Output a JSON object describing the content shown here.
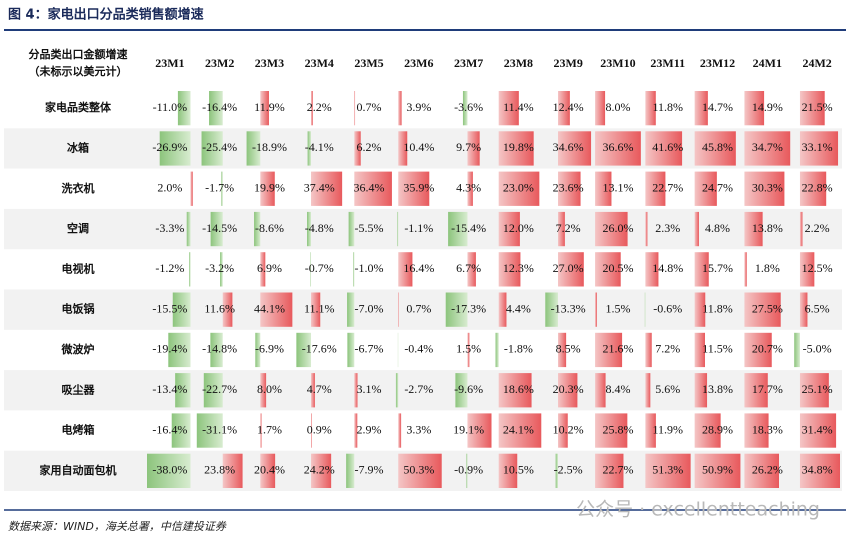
{
  "title": "图 4：家电出口分品类销售额增速",
  "table": {
    "header": {
      "label_lines": [
        "分品类出口金额增速",
        "（未标示以美元计）"
      ],
      "columns": [
        "23M1",
        "23M2",
        "23M3",
        "23M4",
        "23M5",
        "23M6",
        "23M7",
        "23M8",
        "23M9",
        "23M10",
        "23M11",
        "23M12",
        "24M1",
        "24M2"
      ]
    },
    "rows": [
      {
        "label": "家电品类整体",
        "values": [
          -11.0,
          -16.4,
          11.9,
          2.2,
          0.7,
          3.9,
          -3.6,
          11.4,
          12.4,
          8.0,
          11.8,
          14.7,
          14.9,
          21.5
        ],
        "value_labels": [
          "-11.0%",
          "-16.4%",
          "11.9%",
          "2.2%",
          "0.7%",
          "3.9%",
          "-3.6%",
          "11.4%",
          "12.4%",
          "8.0%",
          "11.8%",
          "14.7%",
          "14.9%",
          "21.5%"
        ]
      },
      {
        "label": "冰箱",
        "values": [
          -26.9,
          -25.4,
          -18.9,
          -4.1,
          6.2,
          10.4,
          9.7,
          19.8,
          34.6,
          36.6,
          41.6,
          45.8,
          34.7,
          33.1
        ],
        "value_labels": [
          "-26.9%",
          "-25.4%",
          "-18.9%",
          "-4.1%",
          "6.2%",
          "10.4%",
          "9.7%",
          "19.8%",
          "34.6%",
          "36.6%",
          "41.6%",
          "45.8%",
          "34.7%",
          "33.1%"
        ]
      },
      {
        "label": "洗衣机",
        "values": [
          2.0,
          -1.7,
          19.9,
          37.4,
          36.4,
          35.9,
          4.3,
          23.0,
          23.6,
          13.1,
          22.7,
          24.7,
          30.3,
          22.8
        ],
        "value_labels": [
          "2.0%",
          "-1.7%",
          "19.9%",
          "37.4%",
          "36.4%",
          "35.9%",
          "4.3%",
          "23.0%",
          "23.6%",
          "13.1%",
          "22.7%",
          "24.7%",
          "30.3%",
          "22.8%"
        ]
      },
      {
        "label": "空调",
        "values": [
          -3.3,
          -14.5,
          -8.6,
          -4.8,
          -5.5,
          -1.1,
          -15.4,
          12.0,
          7.2,
          26.0,
          2.3,
          4.8,
          13.8,
          2.2
        ],
        "value_labels": [
          "-3.3%",
          "-14.5%",
          "-8.6%",
          "-4.8%",
          "-5.5%",
          "-1.1%",
          "-15.4%",
          "12.0%",
          "7.2%",
          "26.0%",
          "2.3%",
          "4.8%",
          "13.8%",
          "2.2%"
        ]
      },
      {
        "label": "电视机",
        "values": [
          -1.2,
          -3.2,
          6.9,
          -0.7,
          -1.0,
          16.4,
          6.7,
          12.3,
          27.0,
          20.5,
          14.8,
          15.7,
          1.8,
          12.5
        ],
        "value_labels": [
          "-1.2%",
          "-3.2%",
          "6.9%",
          "-0.7%",
          "-1.0%",
          "16.4%",
          "6.7%",
          "12.3%",
          "27.0%",
          "20.5%",
          "14.8%",
          "15.7%",
          "1.8%",
          "12.5%"
        ]
      },
      {
        "label": "电饭锅",
        "values": [
          -15.5,
          11.6,
          44.1,
          11.1,
          -7.0,
          0.7,
          -17.3,
          4.4,
          -13.3,
          1.5,
          -0.6,
          11.8,
          27.5,
          6.5
        ],
        "value_labels": [
          "-15.5%",
          "11.6%",
          "44.1%",
          "11.1%",
          "-7.0%",
          "0.7%",
          "-17.3%",
          "4.4%",
          "-13.3%",
          "1.5%",
          "-0.6%",
          "11.8%",
          "27.5%",
          "6.5%"
        ]
      },
      {
        "label": "微波炉",
        "values": [
          -19.4,
          -14.8,
          -6.9,
          -17.6,
          -6.7,
          -0.4,
          1.5,
          -1.8,
          8.5,
          21.6,
          7.2,
          11.5,
          20.7,
          -5.0
        ],
        "value_labels": [
          "-19.4%",
          "-14.8%",
          "-6.9%",
          "-17.6%",
          "-6.7%",
          "-0.4%",
          "1.5%",
          "-1.8%",
          "8.5%",
          "21.6%",
          "7.2%",
          "11.5%",
          "20.7%",
          "-5.0%"
        ]
      },
      {
        "label": "吸尘器",
        "values": [
          -13.4,
          -22.7,
          8.0,
          4.7,
          3.1,
          -2.7,
          -9.6,
          18.6,
          20.3,
          8.4,
          5.6,
          13.8,
          17.7,
          25.1
        ],
        "value_labels": [
          "-13.4%",
          "-22.7%",
          "8.0%",
          "4.7%",
          "3.1%",
          "-2.7%",
          "-9.6%",
          "18.6%",
          "20.3%",
          "8.4%",
          "5.6%",
          "13.8%",
          "17.7%",
          "25.1%"
        ]
      },
      {
        "label": "电烤箱",
        "values": [
          -16.4,
          -31.1,
          1.7,
          0.9,
          2.9,
          3.3,
          19.1,
          24.1,
          10.2,
          25.8,
          11.9,
          28.9,
          18.3,
          31.4
        ],
        "value_labels": [
          "-16.4%",
          "-31.1%",
          "1.7%",
          "0.9%",
          "2.9%",
          "3.3%",
          "19.1%",
          "24.1%",
          "10.2%",
          "25.8%",
          "11.9%",
          "28.9%",
          "18.3%",
          "31.4%"
        ]
      },
      {
        "label": "家用自动面包机",
        "values": [
          -38.0,
          23.8,
          20.4,
          24.2,
          -7.9,
          50.3,
          -0.9,
          10.5,
          -2.5,
          22.7,
          51.3,
          50.9,
          26.2,
          34.8
        ],
        "value_labels": [
          "-38.0%",
          "23.8%",
          "20.4%",
          "24.2%",
          "-7.9%",
          "50.3%",
          "-0.9%",
          "10.5%",
          "-2.5%",
          "22.7%",
          "51.3%",
          "50.9%",
          "26.2%",
          "34.8%"
        ]
      }
    ]
  },
  "source": "数据来源：WIND，海关总署，中信建投证券",
  "watermark": "公众号 · excellentteaching"
}
